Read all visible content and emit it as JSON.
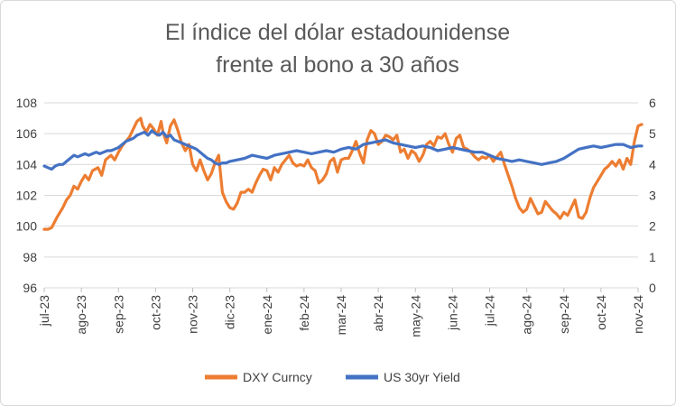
{
  "chart_data": {
    "type": "line",
    "title": [
      "El índice del dólar estadounidense",
      "frente al bono a 30 años"
    ],
    "x_ticks": [
      "jul-23",
      "ago-23",
      "sep-23",
      "oct-23",
      "nov-23",
      "dic-23",
      "ene-24",
      "feb-24",
      "mar-24",
      "abr-24",
      "may-24",
      "jun-24",
      "jul-24",
      "ago-24",
      "sep-24",
      "oct-24",
      "nov-24"
    ],
    "y_left": {
      "range": [
        96,
        108
      ],
      "ticks": [
        "96",
        "98",
        "100",
        "102",
        "104",
        "106",
        "108"
      ]
    },
    "y_right": {
      "range": [
        0,
        6
      ],
      "ticks": [
        "0",
        "1",
        "2",
        "3",
        "4",
        "5",
        "6"
      ]
    },
    "grid": true,
    "legend_position": "bottom",
    "series": [
      {
        "name": "DXY Curncy",
        "axis": "left",
        "color": "#ED7D31",
        "x": [
          0.0,
          0.1,
          0.2,
          0.35,
          0.5,
          0.6,
          0.7,
          0.8,
          0.9,
          1.0,
          1.1,
          1.2,
          1.3,
          1.45,
          1.55,
          1.65,
          1.8,
          1.9,
          2.0,
          2.1,
          2.2,
          2.3,
          2.4,
          2.5,
          2.6,
          2.65,
          2.75,
          2.85,
          2.95,
          3.05,
          3.15,
          3.2,
          3.3,
          3.4,
          3.5,
          3.6,
          3.7,
          3.8,
          3.9,
          4.0,
          4.1,
          4.2,
          4.3,
          4.4,
          4.5,
          4.6,
          4.7,
          4.8,
          4.9,
          5.0,
          5.1,
          5.2,
          5.3,
          5.4,
          5.5,
          5.6,
          5.7,
          5.8,
          5.9,
          6.0,
          6.1,
          6.2,
          6.3,
          6.4,
          6.5,
          6.6,
          6.7,
          6.8,
          6.9,
          7.0,
          7.1,
          7.2,
          7.3,
          7.4,
          7.5,
          7.6,
          7.7,
          7.8,
          7.9,
          8.0,
          8.1,
          8.2,
          8.3,
          8.4,
          8.5,
          8.6,
          8.7,
          8.8,
          8.9,
          9.0,
          9.1,
          9.2,
          9.3,
          9.4,
          9.5,
          9.6,
          9.7,
          9.8,
          9.9,
          10.0,
          10.1,
          10.2,
          10.3,
          10.4,
          10.5,
          10.6,
          10.7,
          10.8,
          10.9,
          11.0,
          11.1,
          11.2,
          11.3,
          11.4,
          11.5,
          11.6,
          11.7,
          11.8,
          11.9,
          12.0,
          12.1,
          12.2,
          12.3,
          12.4,
          12.5,
          12.6,
          12.7,
          12.8,
          12.9,
          13.0,
          13.1,
          13.2,
          13.3,
          13.4,
          13.5,
          13.6,
          13.7,
          13.8,
          13.9,
          14.0,
          14.1,
          14.2,
          14.3,
          14.4,
          14.5,
          14.6,
          14.7,
          14.8,
          14.9,
          15.0,
          15.1,
          15.2,
          15.3,
          15.4,
          15.5,
          15.6,
          15.7,
          15.8,
          15.9,
          16.0,
          16.1
        ],
        "values": [
          99.8,
          99.8,
          99.9,
          100.6,
          101.2,
          101.7,
          102.0,
          102.6,
          102.4,
          102.9,
          103.3,
          103.0,
          103.6,
          103.8,
          103.3,
          104.3,
          104.6,
          104.3,
          104.8,
          105.2,
          105.5,
          105.8,
          106.3,
          106.8,
          107.0,
          106.5,
          106.1,
          106.6,
          106.3,
          105.9,
          106.8,
          106.1,
          105.4,
          106.5,
          106.9,
          106.2,
          105.4,
          104.9,
          105.3,
          104.0,
          103.6,
          104.3,
          103.6,
          103.0,
          103.4,
          104.1,
          104.6,
          102.2,
          101.6,
          101.2,
          101.1,
          101.5,
          102.2,
          102.2,
          102.4,
          102.2,
          102.8,
          103.3,
          103.7,
          103.6,
          103.0,
          103.8,
          103.5,
          104.0,
          104.3,
          104.6,
          104.1,
          103.9,
          104.0,
          103.9,
          104.3,
          103.8,
          103.6,
          102.8,
          103.0,
          103.4,
          104.2,
          104.4,
          103.5,
          104.3,
          104.4,
          104.4,
          104.9,
          105.5,
          104.7,
          104.1,
          105.6,
          106.2,
          106.0,
          105.3,
          105.5,
          105.9,
          105.8,
          105.6,
          105.9,
          104.8,
          105.0,
          104.4,
          104.9,
          104.7,
          104.2,
          104.6,
          105.3,
          105.5,
          105.2,
          105.8,
          105.7,
          106.0,
          105.3,
          104.8,
          105.7,
          105.9,
          105.1,
          105.0,
          104.8,
          104.5,
          104.3,
          104.5,
          104.4,
          104.6,
          104.2,
          104.5,
          104.8,
          104.0,
          103.3,
          102.6,
          101.8,
          101.2,
          100.9,
          101.1,
          101.8,
          101.3,
          100.8,
          100.9,
          101.6,
          101.3,
          101.0,
          100.8,
          100.5,
          100.9,
          100.7,
          101.2,
          101.7,
          100.6,
          100.5,
          100.9,
          101.8,
          102.5,
          102.9,
          103.3,
          103.7,
          103.9,
          104.2,
          103.9,
          104.3,
          103.7,
          104.4,
          104.0,
          105.5,
          106.5,
          106.6
        ]
      },
      {
        "name": "US 30yr Yield",
        "axis": "right",
        "color": "#4472C4",
        "x": [
          0.0,
          0.1,
          0.2,
          0.3,
          0.4,
          0.5,
          0.6,
          0.7,
          0.8,
          0.9,
          1.0,
          1.1,
          1.2,
          1.3,
          1.4,
          1.5,
          1.6,
          1.7,
          1.8,
          1.9,
          2.0,
          2.1,
          2.2,
          2.3,
          2.4,
          2.5,
          2.6,
          2.7,
          2.8,
          2.9,
          3.0,
          3.1,
          3.2,
          3.3,
          3.4,
          3.5,
          3.6,
          3.7,
          3.8,
          3.9,
          4.0,
          4.1,
          4.2,
          4.3,
          4.4,
          4.5,
          4.6,
          4.7,
          4.8,
          4.9,
          5.0,
          5.2,
          5.4,
          5.6,
          5.8,
          6.0,
          6.2,
          6.4,
          6.6,
          6.8,
          7.0,
          7.2,
          7.4,
          7.6,
          7.8,
          8.0,
          8.2,
          8.4,
          8.6,
          8.8,
          9.0,
          9.2,
          9.4,
          9.6,
          9.8,
          10.0,
          10.2,
          10.4,
          10.6,
          10.8,
          11.0,
          11.2,
          11.4,
          11.6,
          11.8,
          12.0,
          12.2,
          12.4,
          12.6,
          12.8,
          13.0,
          13.2,
          13.4,
          13.6,
          13.8,
          14.0,
          14.2,
          14.4,
          14.6,
          14.8,
          15.0,
          15.2,
          15.4,
          15.6,
          15.8,
          16.0,
          16.1
        ],
        "values": [
          3.95,
          3.9,
          3.85,
          3.95,
          4.0,
          4.0,
          4.1,
          4.2,
          4.3,
          4.25,
          4.3,
          4.35,
          4.3,
          4.35,
          4.4,
          4.35,
          4.4,
          4.45,
          4.45,
          4.5,
          4.55,
          4.65,
          4.75,
          4.8,
          4.85,
          4.95,
          5.0,
          5.05,
          4.95,
          5.1,
          5.0,
          4.95,
          5.05,
          4.9,
          4.95,
          4.8,
          4.75,
          4.7,
          4.65,
          4.6,
          4.55,
          4.5,
          4.4,
          4.3,
          4.2,
          4.15,
          4.05,
          4.0,
          4.05,
          4.05,
          4.1,
          4.15,
          4.2,
          4.3,
          4.25,
          4.2,
          4.3,
          4.35,
          4.4,
          4.45,
          4.4,
          4.35,
          4.4,
          4.45,
          4.4,
          4.5,
          4.55,
          4.5,
          4.65,
          4.7,
          4.75,
          4.8,
          4.7,
          4.65,
          4.6,
          4.55,
          4.6,
          4.55,
          4.45,
          4.5,
          4.55,
          4.5,
          4.45,
          4.4,
          4.4,
          4.3,
          4.2,
          4.15,
          4.1,
          4.15,
          4.1,
          4.05,
          4.0,
          4.05,
          4.1,
          4.2,
          4.35,
          4.5,
          4.55,
          4.6,
          4.55,
          4.6,
          4.65,
          4.65,
          4.55,
          4.6,
          4.6
        ]
      }
    ]
  }
}
